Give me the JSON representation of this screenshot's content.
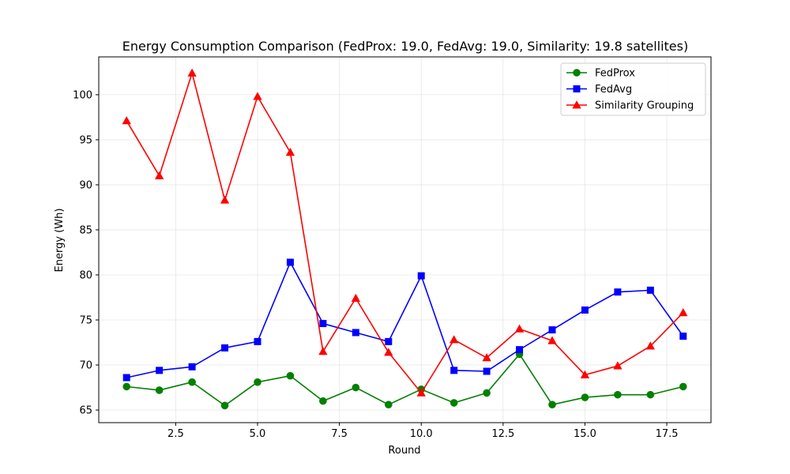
{
  "chart_data": {
    "type": "line",
    "title": "Energy Consumption Comparison (FedProx: 19.0, FedAvg: 19.0, Similarity: 19.8 satellites)",
    "xlabel": "Round",
    "ylabel": "Energy (Wh)",
    "xlim": [
      0.15,
      18.85
    ],
    "ylim": [
      63.6,
      104.2
    ],
    "xticks": [
      2.5,
      5.0,
      7.5,
      10.0,
      12.5,
      15.0,
      17.5
    ],
    "xtick_labels": [
      "2.5",
      "5.0",
      "7.5",
      "10.0",
      "12.5",
      "15.0",
      "17.5"
    ],
    "yticks": [
      65,
      70,
      75,
      80,
      85,
      90,
      95,
      100
    ],
    "ytick_labels": [
      "65",
      "70",
      "75",
      "80",
      "85",
      "90",
      "95",
      "100"
    ],
    "grid": true,
    "legend_position": "top-right",
    "x": [
      1,
      2,
      3,
      4,
      5,
      6,
      7,
      8,
      9,
      10,
      11,
      12,
      13,
      14,
      15,
      16,
      17,
      18
    ],
    "series": [
      {
        "name": "FedProx",
        "color": "#008000",
        "marker": "circle",
        "values": [
          67.6,
          67.2,
          68.1,
          65.5,
          68.1,
          68.8,
          66.0,
          67.5,
          65.6,
          67.3,
          65.8,
          66.9,
          71.2,
          65.6,
          66.4,
          66.7,
          66.7,
          67.6
        ]
      },
      {
        "name": "FedAvg",
        "color": "#0000ff",
        "marker": "square",
        "values": [
          68.6,
          69.4,
          69.8,
          71.9,
          72.6,
          81.4,
          74.6,
          73.6,
          72.6,
          79.9,
          69.4,
          69.3,
          71.7,
          73.9,
          76.1,
          78.1,
          78.3,
          73.2
        ]
      },
      {
        "name": "Similarity Grouping",
        "color": "#ff0000",
        "marker": "triangle",
        "values": [
          97.1,
          91.0,
          102.4,
          88.3,
          99.8,
          93.6,
          71.5,
          77.4,
          71.4,
          66.9,
          72.8,
          70.8,
          74.0,
          72.7,
          68.9,
          69.9,
          72.1,
          75.8
        ]
      }
    ]
  }
}
